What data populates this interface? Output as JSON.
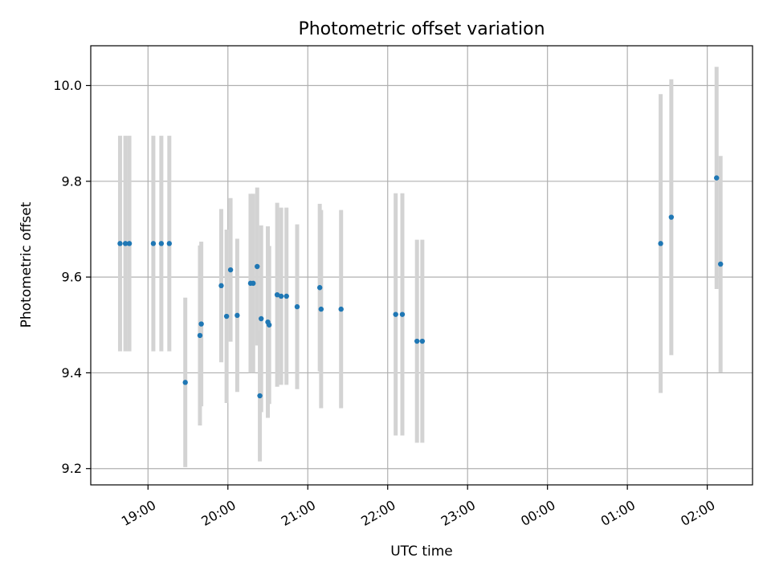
{
  "chart_data": {
    "type": "scatter",
    "title": "Photometric offset variation",
    "xlabel": "UTC time",
    "ylabel": "Photometric offset",
    "x_ticks": [
      "19:00",
      "20:00",
      "21:00",
      "22:00",
      "23:00",
      "00:00",
      "01:00",
      "02:00"
    ],
    "y_ticks": [
      "9.2",
      "9.4",
      "9.6",
      "9.8",
      "10.0"
    ],
    "xlim": [
      "18:17",
      "02:34"
    ],
    "ylim": [
      9.166,
      10.083
    ],
    "grid": true,
    "colors": {
      "point": "#1f77b4",
      "errorbar": "#d3d3d3",
      "grid": "#b0b0b0"
    },
    "points": [
      {
        "time": "18:39",
        "y": 9.67,
        "err": 0.225
      },
      {
        "time": "18:43",
        "y": 9.67,
        "err": 0.225
      },
      {
        "time": "18:46",
        "y": 9.67,
        "err": 0.225
      },
      {
        "time": "19:04",
        "y": 9.67,
        "err": 0.225
      },
      {
        "time": "19:10",
        "y": 9.67,
        "err": 0.225
      },
      {
        "time": "19:16",
        "y": 9.67,
        "err": 0.225
      },
      {
        "time": "19:28",
        "y": 9.38,
        "err": 0.177
      },
      {
        "time": "19:39",
        "y": 9.478,
        "err": 0.188
      },
      {
        "time": "19:40",
        "y": 9.502,
        "err": 0.172
      },
      {
        "time": "19:55",
        "y": 9.582,
        "err": 0.16
      },
      {
        "time": "19:59",
        "y": 9.518,
        "err": 0.181
      },
      {
        "time": "20:02",
        "y": 9.615,
        "err": 0.15
      },
      {
        "time": "20:07",
        "y": 9.52,
        "err": 0.16
      },
      {
        "time": "20:17",
        "y": 9.587,
        "err": 0.187
      },
      {
        "time": "20:19",
        "y": 9.587,
        "err": 0.187
      },
      {
        "time": "20:22",
        "y": 9.622,
        "err": 0.165
      },
      {
        "time": "20:24",
        "y": 9.352,
        "err": 0.137
      },
      {
        "time": "20:25",
        "y": 9.513,
        "err": 0.195
      },
      {
        "time": "20:30",
        "y": 9.506,
        "err": 0.2
      },
      {
        "time": "20:31",
        "y": 9.5,
        "err": 0.165
      },
      {
        "time": "20:37",
        "y": 9.563,
        "err": 0.192
      },
      {
        "time": "20:40",
        "y": 9.56,
        "err": 0.185
      },
      {
        "time": "20:44",
        "y": 9.56,
        "err": 0.185
      },
      {
        "time": "20:52",
        "y": 9.538,
        "err": 0.172
      },
      {
        "time": "21:09",
        "y": 9.578,
        "err": 0.175
      },
      {
        "time": "21:10",
        "y": 9.533,
        "err": 0.207
      },
      {
        "time": "21:25",
        "y": 9.533,
        "err": 0.207
      },
      {
        "time": "22:06",
        "y": 9.522,
        "err": 0.253
      },
      {
        "time": "22:11",
        "y": 9.522,
        "err": 0.253
      },
      {
        "time": "22:22",
        "y": 9.466,
        "err": 0.212
      },
      {
        "time": "22:26",
        "y": 9.466,
        "err": 0.212
      },
      {
        "time": "01:25",
        "y": 9.67,
        "err": 0.312
      },
      {
        "time": "01:33",
        "y": 9.725,
        "err": 0.288
      },
      {
        "time": "02:07",
        "y": 9.807,
        "err": 0.232
      },
      {
        "time": "02:10",
        "y": 9.627,
        "err": 0.226
      }
    ]
  }
}
